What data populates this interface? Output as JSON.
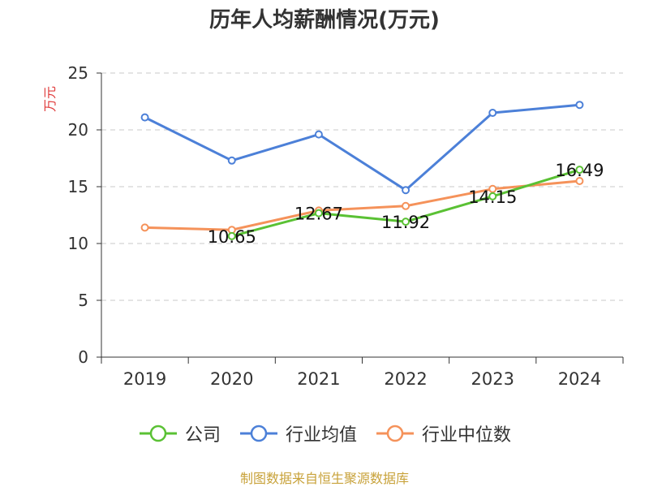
{
  "title": "历年人均薪酬情况(万元)",
  "source": "制图数据来自恒生聚源数据库",
  "chart_data": {
    "type": "line",
    "title": "历年人均薪酬情况(万元)",
    "ylabel": "万元",
    "xlabel": "",
    "categories": [
      "2019",
      "2020",
      "2021",
      "2022",
      "2023",
      "2024"
    ],
    "ylim": [
      0,
      25
    ],
    "yticks": [
      0,
      5,
      10,
      15,
      20,
      25
    ],
    "grid": true,
    "legend_position": "bottom",
    "series": [
      {
        "name": "公司",
        "color": "#5ac134",
        "values": [
          null,
          10.65,
          12.67,
          11.92,
          14.15,
          16.49
        ],
        "labels": [
          null,
          "10.65",
          "12.67",
          "11.92",
          "14.15",
          "16.49"
        ]
      },
      {
        "name": "行业均值",
        "color": "#4c80d8",
        "values": [
          21.1,
          17.3,
          19.6,
          14.7,
          21.5,
          22.2
        ],
        "labels": [
          null,
          null,
          null,
          null,
          null,
          null
        ]
      },
      {
        "name": "行业中位数",
        "color": "#f5925a",
        "values": [
          11.4,
          11.2,
          12.9,
          13.3,
          14.8,
          15.5
        ],
        "labels": [
          null,
          null,
          null,
          null,
          null,
          null
        ]
      }
    ]
  }
}
